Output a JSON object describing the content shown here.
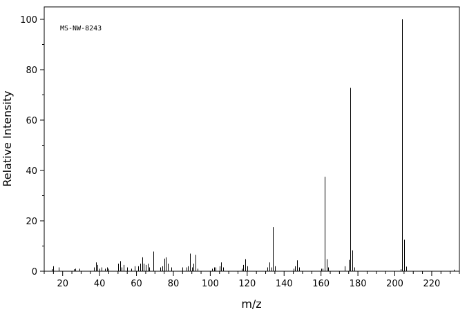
{
  "chart_data": {
    "type": "bar",
    "title": "",
    "annotation": "MS-NW-8243",
    "xlabel": "m/z",
    "ylabel": "Relative Intensity",
    "xlim": [
      10,
      235
    ],
    "ylim": [
      0,
      105
    ],
    "xticks": [
      20,
      40,
      60,
      80,
      100,
      120,
      140,
      160,
      180,
      200,
      220
    ],
    "yticks": [
      0,
      20,
      40,
      60,
      80,
      100
    ],
    "grid": false,
    "legend": "none",
    "colors": {
      "stick": "#000000",
      "axis": "#000000",
      "background": "#ffffff"
    },
    "peaks": [
      {
        "mz": 14,
        "intensity": 0.8
      },
      {
        "mz": 15,
        "intensity": 2.0
      },
      {
        "mz": 18,
        "intensity": 1.5
      },
      {
        "mz": 26,
        "intensity": 0.8
      },
      {
        "mz": 27,
        "intensity": 1.0
      },
      {
        "mz": 29,
        "intensity": 1.0
      },
      {
        "mz": 37,
        "intensity": 1.5
      },
      {
        "mz": 38,
        "intensity": 3.5
      },
      {
        "mz": 39,
        "intensity": 2.5
      },
      {
        "mz": 40,
        "intensity": 1.0
      },
      {
        "mz": 41,
        "intensity": 1.5
      },
      {
        "mz": 43,
        "intensity": 1.0
      },
      {
        "mz": 44,
        "intensity": 1.5
      },
      {
        "mz": 45,
        "intensity": 1.0
      },
      {
        "mz": 50,
        "intensity": 3.0
      },
      {
        "mz": 51,
        "intensity": 4.0
      },
      {
        "mz": 52,
        "intensity": 1.5
      },
      {
        "mz": 53,
        "intensity": 2.5
      },
      {
        "mz": 55,
        "intensity": 1.5
      },
      {
        "mz": 57,
        "intensity": 1.0
      },
      {
        "mz": 59,
        "intensity": 2.0
      },
      {
        "mz": 61,
        "intensity": 2.0
      },
      {
        "mz": 62,
        "intensity": 3.0
      },
      {
        "mz": 63,
        "intensity": 5.5
      },
      {
        "mz": 64,
        "intensity": 3.0
      },
      {
        "mz": 65,
        "intensity": 2.5
      },
      {
        "mz": 66,
        "intensity": 3.0
      },
      {
        "mz": 67,
        "intensity": 1.5
      },
      {
        "mz": 69,
        "intensity": 7.8
      },
      {
        "mz": 73,
        "intensity": 1.5
      },
      {
        "mz": 74,
        "intensity": 2.0
      },
      {
        "mz": 75,
        "intensity": 5.0
      },
      {
        "mz": 76,
        "intensity": 5.5
      },
      {
        "mz": 77,
        "intensity": 3.0
      },
      {
        "mz": 79,
        "intensity": 1.5
      },
      {
        "mz": 85,
        "intensity": 1.5
      },
      {
        "mz": 87,
        "intensity": 1.5
      },
      {
        "mz": 88,
        "intensity": 2.0
      },
      {
        "mz": 89,
        "intensity": 7.0
      },
      {
        "mz": 90,
        "intensity": 1.5
      },
      {
        "mz": 91,
        "intensity": 3.0
      },
      {
        "mz": 92,
        "intensity": 6.5
      },
      {
        "mz": 93,
        "intensity": 1.0
      },
      {
        "mz": 101,
        "intensity": 1.0
      },
      {
        "mz": 102,
        "intensity": 1.5
      },
      {
        "mz": 103,
        "intensity": 1.5
      },
      {
        "mz": 105,
        "intensity": 2.0
      },
      {
        "mz": 106,
        "intensity": 3.5
      },
      {
        "mz": 107,
        "intensity": 1.5
      },
      {
        "mz": 117,
        "intensity": 1.0
      },
      {
        "mz": 118,
        "intensity": 2.5
      },
      {
        "mz": 119,
        "intensity": 4.8
      },
      {
        "mz": 120,
        "intensity": 2.0
      },
      {
        "mz": 131,
        "intensity": 1.5
      },
      {
        "mz": 132,
        "intensity": 3.5
      },
      {
        "mz": 133,
        "intensity": 1.5
      },
      {
        "mz": 134,
        "intensity": 17.5
      },
      {
        "mz": 135,
        "intensity": 2.0
      },
      {
        "mz": 145,
        "intensity": 1.0
      },
      {
        "mz": 146,
        "intensity": 2.0
      },
      {
        "mz": 147,
        "intensity": 4.3
      },
      {
        "mz": 148,
        "intensity": 1.5
      },
      {
        "mz": 160,
        "intensity": 1.0
      },
      {
        "mz": 161,
        "intensity": 1.0
      },
      {
        "mz": 162,
        "intensity": 37.5
      },
      {
        "mz": 163,
        "intensity": 4.8
      },
      {
        "mz": 164,
        "intensity": 1.5
      },
      {
        "mz": 173,
        "intensity": 2.0
      },
      {
        "mz": 175,
        "intensity": 4.5
      },
      {
        "mz": 176,
        "intensity": 72.8
      },
      {
        "mz": 177,
        "intensity": 8.3
      },
      {
        "mz": 178,
        "intensity": 1.5
      },
      {
        "mz": 203,
        "intensity": 0.8
      },
      {
        "mz": 204,
        "intensity": 100.0
      },
      {
        "mz": 205,
        "intensity": 12.5
      },
      {
        "mz": 206,
        "intensity": 1.8
      },
      {
        "mz": 232,
        "intensity": 0.6
      }
    ]
  }
}
